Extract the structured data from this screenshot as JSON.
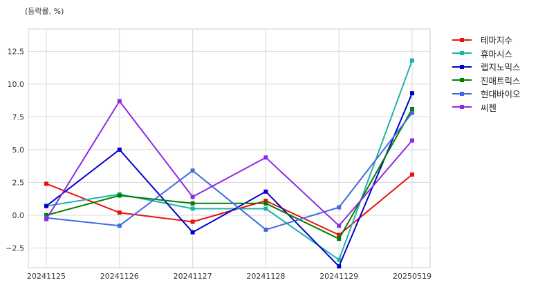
{
  "chart_data": {
    "type": "line",
    "title": "",
    "ylabel": "(등락률, %)",
    "xlabel": "",
    "categories": [
      "20241125",
      "20241126",
      "20241127",
      "20241128",
      "20241129",
      "20250519"
    ],
    "ylim": [
      -4.0,
      14.2
    ],
    "yticks": [
      -2.5,
      0.0,
      2.5,
      5.0,
      7.5,
      10.0,
      12.5
    ],
    "ytick_labels": [
      "−2.5",
      "0.0",
      "2.5",
      "5.0",
      "7.5",
      "10.0",
      "12.5"
    ],
    "grid": true,
    "legend_position": "outside-top-right",
    "series": [
      {
        "name": "테마지수",
        "color": "#e8120c",
        "values": [
          2.4,
          0.2,
          -0.5,
          1.1,
          -1.5,
          3.1
        ]
      },
      {
        "name": "휴마시스",
        "color": "#20b2aa",
        "values": [
          0.7,
          1.6,
          0.5,
          0.5,
          -3.4,
          11.8
        ]
      },
      {
        "name": "랩지노믹스",
        "color": "#0000cd",
        "values": [
          0.7,
          5.0,
          -1.3,
          1.8,
          -3.9,
          9.3
        ]
      },
      {
        "name": "진매트릭스",
        "color": "#008000",
        "values": [
          0.0,
          1.5,
          0.9,
          0.9,
          -1.8,
          8.1
        ]
      },
      {
        "name": "현대바이오",
        "color": "#4169e1",
        "values": [
          -0.2,
          -0.8,
          3.4,
          -1.1,
          0.6,
          7.8
        ]
      },
      {
        "name": "씨젠",
        "color": "#8a2be2",
        "values": [
          -0.3,
          8.7,
          1.4,
          4.4,
          -0.8,
          5.7
        ]
      }
    ]
  }
}
